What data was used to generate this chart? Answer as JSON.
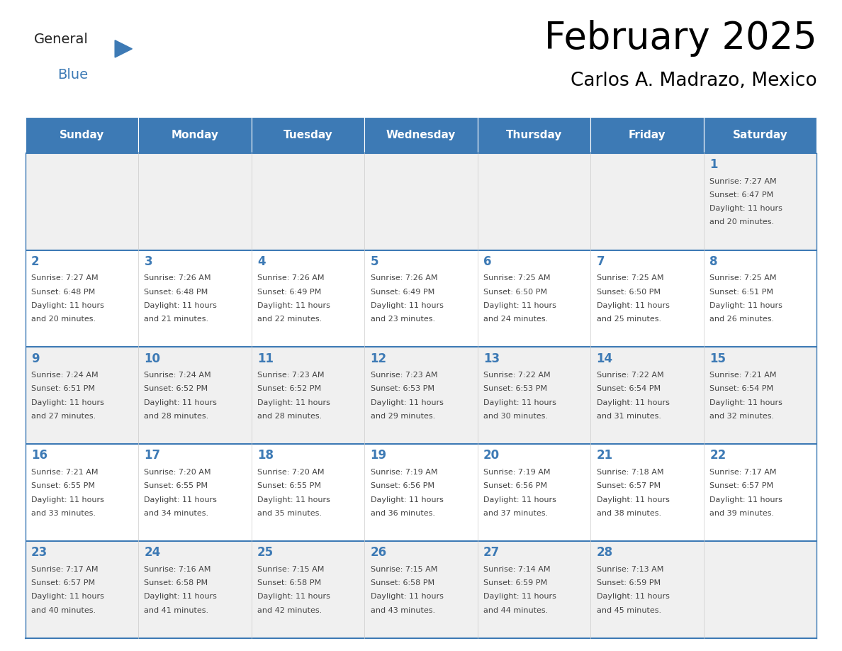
{
  "title": "February 2025",
  "subtitle": "Carlos A. Madrazo, Mexico",
  "days_of_week": [
    "Sunday",
    "Monday",
    "Tuesday",
    "Wednesday",
    "Thursday",
    "Friday",
    "Saturday"
  ],
  "header_bg": "#3d7ab5",
  "header_text": "#ffffff",
  "row_bg_light": "#f0f0f0",
  "row_bg_white": "#ffffff",
  "border_color": "#3d7ab5",
  "day_num_color": "#3d7ab5",
  "text_color": "#444444",
  "calendar": [
    [
      null,
      null,
      null,
      null,
      null,
      null,
      {
        "day": 1,
        "sunrise": "7:27 AM",
        "sunset": "6:47 PM",
        "daylight": "11 hours and 20 minutes."
      }
    ],
    [
      {
        "day": 2,
        "sunrise": "7:27 AM",
        "sunset": "6:48 PM",
        "daylight": "11 hours and 20 minutes."
      },
      {
        "day": 3,
        "sunrise": "7:26 AM",
        "sunset": "6:48 PM",
        "daylight": "11 hours and 21 minutes."
      },
      {
        "day": 4,
        "sunrise": "7:26 AM",
        "sunset": "6:49 PM",
        "daylight": "11 hours and 22 minutes."
      },
      {
        "day": 5,
        "sunrise": "7:26 AM",
        "sunset": "6:49 PM",
        "daylight": "11 hours and 23 minutes."
      },
      {
        "day": 6,
        "sunrise": "7:25 AM",
        "sunset": "6:50 PM",
        "daylight": "11 hours and 24 minutes."
      },
      {
        "day": 7,
        "sunrise": "7:25 AM",
        "sunset": "6:50 PM",
        "daylight": "11 hours and 25 minutes."
      },
      {
        "day": 8,
        "sunrise": "7:25 AM",
        "sunset": "6:51 PM",
        "daylight": "11 hours and 26 minutes."
      }
    ],
    [
      {
        "day": 9,
        "sunrise": "7:24 AM",
        "sunset": "6:51 PM",
        "daylight": "11 hours and 27 minutes."
      },
      {
        "day": 10,
        "sunrise": "7:24 AM",
        "sunset": "6:52 PM",
        "daylight": "11 hours and 28 minutes."
      },
      {
        "day": 11,
        "sunrise": "7:23 AM",
        "sunset": "6:52 PM",
        "daylight": "11 hours and 28 minutes."
      },
      {
        "day": 12,
        "sunrise": "7:23 AM",
        "sunset": "6:53 PM",
        "daylight": "11 hours and 29 minutes."
      },
      {
        "day": 13,
        "sunrise": "7:22 AM",
        "sunset": "6:53 PM",
        "daylight": "11 hours and 30 minutes."
      },
      {
        "day": 14,
        "sunrise": "7:22 AM",
        "sunset": "6:54 PM",
        "daylight": "11 hours and 31 minutes."
      },
      {
        "day": 15,
        "sunrise": "7:21 AM",
        "sunset": "6:54 PM",
        "daylight": "11 hours and 32 minutes."
      }
    ],
    [
      {
        "day": 16,
        "sunrise": "7:21 AM",
        "sunset": "6:55 PM",
        "daylight": "11 hours and 33 minutes."
      },
      {
        "day": 17,
        "sunrise": "7:20 AM",
        "sunset": "6:55 PM",
        "daylight": "11 hours and 34 minutes."
      },
      {
        "day": 18,
        "sunrise": "7:20 AM",
        "sunset": "6:55 PM",
        "daylight": "11 hours and 35 minutes."
      },
      {
        "day": 19,
        "sunrise": "7:19 AM",
        "sunset": "6:56 PM",
        "daylight": "11 hours and 36 minutes."
      },
      {
        "day": 20,
        "sunrise": "7:19 AM",
        "sunset": "6:56 PM",
        "daylight": "11 hours and 37 minutes."
      },
      {
        "day": 21,
        "sunrise": "7:18 AM",
        "sunset": "6:57 PM",
        "daylight": "11 hours and 38 minutes."
      },
      {
        "day": 22,
        "sunrise": "7:17 AM",
        "sunset": "6:57 PM",
        "daylight": "11 hours and 39 minutes."
      }
    ],
    [
      {
        "day": 23,
        "sunrise": "7:17 AM",
        "sunset": "6:57 PM",
        "daylight": "11 hours and 40 minutes."
      },
      {
        "day": 24,
        "sunrise": "7:16 AM",
        "sunset": "6:58 PM",
        "daylight": "11 hours and 41 minutes."
      },
      {
        "day": 25,
        "sunrise": "7:15 AM",
        "sunset": "6:58 PM",
        "daylight": "11 hours and 42 minutes."
      },
      {
        "day": 26,
        "sunrise": "7:15 AM",
        "sunset": "6:58 PM",
        "daylight": "11 hours and 43 minutes."
      },
      {
        "day": 27,
        "sunrise": "7:14 AM",
        "sunset": "6:59 PM",
        "daylight": "11 hours and 44 minutes."
      },
      {
        "day": 28,
        "sunrise": "7:13 AM",
        "sunset": "6:59 PM",
        "daylight": "11 hours and 45 minutes."
      },
      null
    ]
  ],
  "fig_width": 11.88,
  "fig_height": 9.18,
  "dpi": 100
}
